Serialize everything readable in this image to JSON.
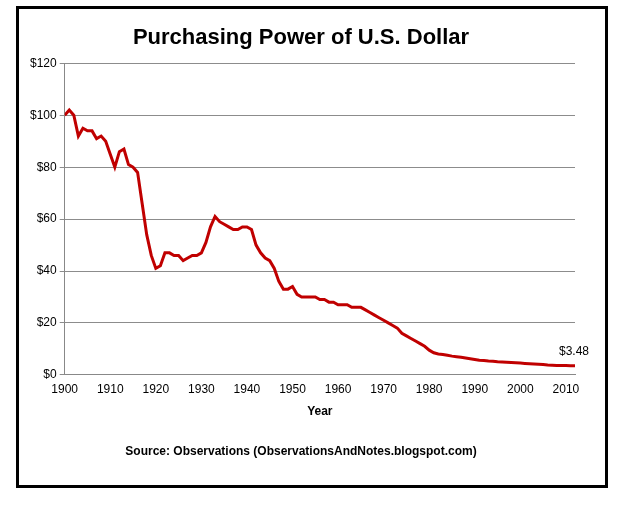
{
  "chart_data": {
    "type": "line",
    "title": "Purchasing Power of U.S. Dollar",
    "x_label": "Year",
    "source": "Source: Observations (ObservationsAndNotes.blogspot.com)",
    "annotations": [
      "$3.48"
    ],
    "x": [
      1900,
      1901,
      1902,
      1903,
      1904,
      1905,
      1906,
      1907,
      1908,
      1909,
      1910,
      1911,
      1912,
      1913,
      1914,
      1915,
      1916,
      1917,
      1918,
      1919,
      1920,
      1921,
      1922,
      1923,
      1924,
      1925,
      1926,
      1927,
      1928,
      1929,
      1930,
      1931,
      1932,
      1933,
      1934,
      1935,
      1936,
      1937,
      1938,
      1939,
      1940,
      1941,
      1942,
      1943,
      1944,
      1945,
      1946,
      1947,
      1948,
      1949,
      1950,
      1951,
      1952,
      1953,
      1954,
      1955,
      1956,
      1957,
      1958,
      1959,
      1960,
      1961,
      1962,
      1963,
      1964,
      1965,
      1966,
      1967,
      1968,
      1969,
      1970,
      1971,
      1972,
      1973,
      1974,
      1975,
      1976,
      1977,
      1978,
      1979,
      1980,
      1981,
      1982,
      1983,
      1984,
      1985,
      1986,
      1987,
      1988,
      1989,
      1990,
      1991,
      1992,
      1993,
      1994,
      1995,
      1996,
      1997,
      1998,
      1999,
      2000,
      2001,
      2002,
      2003,
      2004,
      2005,
      2006,
      2007,
      2008,
      2009,
      2010,
      2011,
      2012
    ],
    "values": [
      100,
      102,
      100,
      92,
      95,
      94,
      94,
      91,
      92,
      90,
      85,
      80,
      86,
      87,
      81,
      80,
      78,
      66,
      54,
      46,
      41,
      42,
      47,
      47,
      46,
      46,
      44,
      45,
      46,
      46,
      47,
      51,
      57,
      61,
      59,
      58,
      57,
      56,
      56,
      57,
      57,
      56,
      50,
      47,
      45,
      44,
      41,
      36,
      33,
      33,
      34,
      31,
      30,
      30,
      30,
      30,
      29,
      29,
      28,
      28,
      27,
      27,
      27,
      26,
      26,
      26,
      25,
      24,
      23,
      22,
      21,
      20,
      19,
      18,
      16,
      15,
      14,
      13,
      12,
      11,
      9.5,
      8.5,
      8,
      7.8,
      7.5,
      7.2,
      7,
      6.8,
      6.5,
      6.2,
      5.9,
      5.6,
      5.5,
      5.3,
      5.2,
      5,
      4.9,
      4.8,
      4.7,
      4.6,
      4.5,
      4.4,
      4.3,
      4.2,
      4.1,
      4,
      3.8,
      3.7,
      3.6,
      3.6,
      3.55,
      3.5,
      3.48
    ],
    "color": "#c00000",
    "xlim": [
      1900,
      2012
    ],
    "xticks": [
      1900,
      1910,
      1920,
      1930,
      1940,
      1950,
      1960,
      1970,
      1980,
      1990,
      2000,
      2010
    ],
    "ylim": [
      0,
      120
    ],
    "yticks": [
      {
        "value": 0,
        "label": "$0"
      },
      {
        "value": 20,
        "label": "$20"
      },
      {
        "value": 40,
        "label": "$40"
      },
      {
        "value": 60,
        "label": "$60"
      },
      {
        "value": 80,
        "label": "$80"
      },
      {
        "value": 100,
        "label": "$100"
      },
      {
        "value": 120,
        "label": "$120"
      }
    ],
    "grid": true
  }
}
